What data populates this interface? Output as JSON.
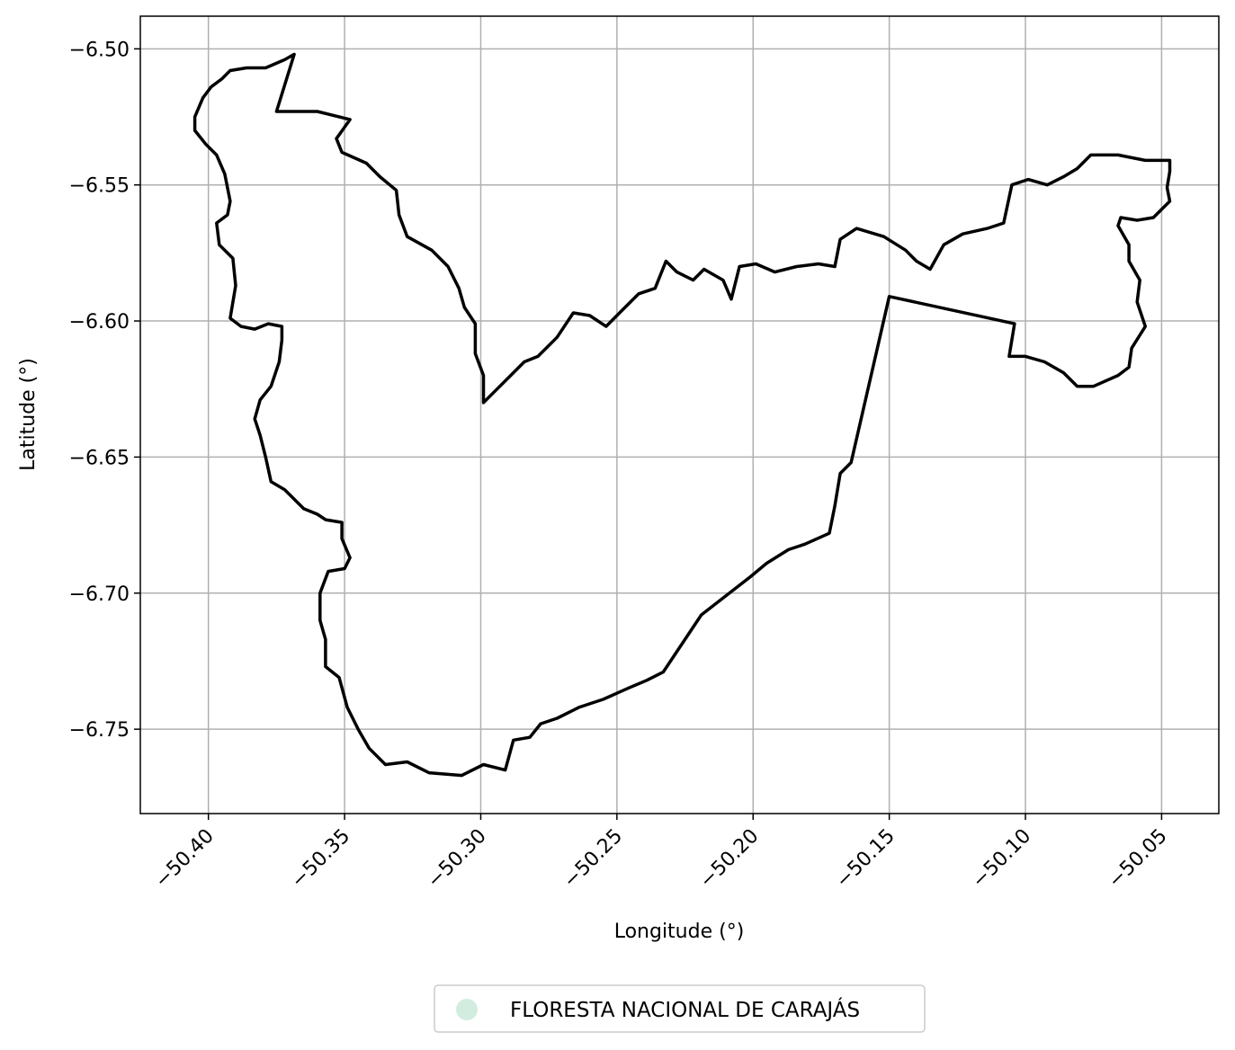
{
  "chart_data": {
    "type": "map",
    "xlabel": "Longitude (°)",
    "ylabel": "Latitude (°)",
    "xlim": [
      -50.425,
      -50.029
    ],
    "ylim": [
      -6.781,
      -6.488
    ],
    "grid": true,
    "x_ticks": [
      -50.4,
      -50.35,
      -50.3,
      -50.25,
      -50.2,
      -50.15,
      -50.1,
      -50.05
    ],
    "x_tick_labels": [
      "−50.40",
      "−50.35",
      "−50.30",
      "−50.25",
      "−50.20",
      "−50.15",
      "−50.10",
      "−50.05"
    ],
    "y_ticks": [
      -6.5,
      -6.55,
      -6.6,
      -6.65,
      -6.7,
      -6.75
    ],
    "y_tick_labels": [
      "−6.50",
      "−6.55",
      "−6.60",
      "−6.65",
      "−6.70",
      "−6.75"
    ],
    "legend": {
      "placement": "bottom-center",
      "entries": [
        {
          "label": "FLORESTA NACIONAL DE CARAJÁS",
          "color": "#d3ece0"
        }
      ]
    },
    "boundary_color": "#000000",
    "boundary": [
      [
        -50.3685,
        -6.502
      ],
      [
        -50.375,
        -6.523
      ],
      [
        -50.36,
        -6.523
      ],
      [
        -50.348,
        -6.526
      ],
      [
        -50.353,
        -6.533
      ],
      [
        -50.351,
        -6.538
      ],
      [
        -50.342,
        -6.542
      ],
      [
        -50.337,
        -6.547
      ],
      [
        -50.331,
        -6.552
      ],
      [
        -50.33,
        -6.561
      ],
      [
        -50.327,
        -6.569
      ],
      [
        -50.318,
        -6.574
      ],
      [
        -50.312,
        -6.58
      ],
      [
        -50.308,
        -6.588
      ],
      [
        -50.306,
        -6.595
      ],
      [
        -50.302,
        -6.601
      ],
      [
        -50.302,
        -6.612
      ],
      [
        -50.299,
        -6.62
      ],
      [
        -50.299,
        -6.63
      ],
      [
        -50.295,
        -6.626
      ],
      [
        -50.289,
        -6.62
      ],
      [
        -50.284,
        -6.615
      ],
      [
        -50.279,
        -6.613
      ],
      [
        -50.272,
        -6.606
      ],
      [
        -50.266,
        -6.597
      ],
      [
        -50.26,
        -6.598
      ],
      [
        -50.254,
        -6.602
      ],
      [
        -50.248,
        -6.596
      ],
      [
        -50.242,
        -6.59
      ],
      [
        -50.236,
        -6.588
      ],
      [
        -50.232,
        -6.578
      ],
      [
        -50.228,
        -6.582
      ],
      [
        -50.222,
        -6.585
      ],
      [
        -50.218,
        -6.581
      ],
      [
        -50.211,
        -6.585
      ],
      [
        -50.208,
        -6.592
      ],
      [
        -50.205,
        -6.58
      ],
      [
        -50.199,
        -6.579
      ],
      [
        -50.192,
        -6.582
      ],
      [
        -50.184,
        -6.58
      ],
      [
        -50.176,
        -6.579
      ],
      [
        -50.17,
        -6.58
      ],
      [
        -50.168,
        -6.57
      ],
      [
        -50.162,
        -6.566
      ],
      [
        -50.152,
        -6.569
      ],
      [
        -50.144,
        -6.574
      ],
      [
        -50.14,
        -6.578
      ],
      [
        -50.135,
        -6.581
      ],
      [
        -50.13,
        -6.572
      ],
      [
        -50.123,
        -6.568
      ],
      [
        -50.114,
        -6.566
      ],
      [
        -50.108,
        -6.564
      ],
      [
        -50.105,
        -6.55
      ],
      [
        -50.099,
        -6.548
      ],
      [
        -50.092,
        -6.55
      ],
      [
        -50.086,
        -6.547
      ],
      [
        -50.081,
        -6.544
      ],
      [
        -50.076,
        -6.539
      ],
      [
        -50.066,
        -6.539
      ],
      [
        -50.056,
        -6.541
      ],
      [
        -50.047,
        -6.541
      ],
      [
        -50.047,
        -6.545
      ],
      [
        -50.048,
        -6.551
      ],
      [
        -50.047,
        -6.556
      ],
      [
        -50.053,
        -6.562
      ],
      [
        -50.059,
        -6.563
      ],
      [
        -50.065,
        -6.562
      ],
      [
        -50.066,
        -6.565
      ],
      [
        -50.062,
        -6.572
      ],
      [
        -50.062,
        -6.578
      ],
      [
        -50.058,
        -6.585
      ],
      [
        -50.059,
        -6.593
      ],
      [
        -50.056,
        -6.602
      ],
      [
        -50.061,
        -6.61
      ],
      [
        -50.062,
        -6.617
      ],
      [
        -50.066,
        -6.62
      ],
      [
        -50.075,
        -6.624
      ],
      [
        -50.081,
        -6.624
      ],
      [
        -50.086,
        -6.619
      ],
      [
        -50.093,
        -6.615
      ],
      [
        -50.1,
        -6.613
      ],
      [
        -50.106,
        -6.613
      ],
      [
        -50.104,
        -6.601
      ],
      [
        -50.15,
        -6.591
      ],
      [
        -50.164,
        -6.652
      ],
      [
        -50.168,
        -6.656
      ],
      [
        -50.17,
        -6.668
      ],
      [
        -50.172,
        -6.678
      ],
      [
        -50.181,
        -6.682
      ],
      [
        -50.187,
        -6.684
      ],
      [
        -50.195,
        -6.689
      ],
      [
        -50.201,
        -6.694
      ],
      [
        -50.219,
        -6.708
      ],
      [
        -50.233,
        -6.729
      ],
      [
        -50.239,
        -6.732
      ],
      [
        -50.246,
        -6.735
      ],
      [
        -50.255,
        -6.739
      ],
      [
        -50.264,
        -6.742
      ],
      [
        -50.272,
        -6.746
      ],
      [
        -50.278,
        -6.748
      ],
      [
        -50.282,
        -6.753
      ],
      [
        -50.288,
        -6.754
      ],
      [
        -50.291,
        -6.765
      ],
      [
        -50.299,
        -6.763
      ],
      [
        -50.307,
        -6.767
      ],
      [
        -50.319,
        -6.766
      ],
      [
        -50.327,
        -6.762
      ],
      [
        -50.335,
        -6.763
      ],
      [
        -50.341,
        -6.757
      ],
      [
        -50.345,
        -6.75
      ],
      [
        -50.349,
        -6.742
      ],
      [
        -50.352,
        -6.731
      ],
      [
        -50.357,
        -6.727
      ],
      [
        -50.357,
        -6.717
      ],
      [
        -50.359,
        -6.71
      ],
      [
        -50.359,
        -6.7
      ],
      [
        -50.356,
        -6.692
      ],
      [
        -50.35,
        -6.691
      ],
      [
        -50.348,
        -6.687
      ],
      [
        -50.351,
        -6.68
      ],
      [
        -50.351,
        -6.674
      ],
      [
        -50.357,
        -6.673
      ],
      [
        -50.36,
        -6.671
      ],
      [
        -50.365,
        -6.669
      ],
      [
        -50.372,
        -6.662
      ],
      [
        -50.377,
        -6.659
      ],
      [
        -50.379,
        -6.65
      ],
      [
        -50.381,
        -6.642
      ],
      [
        -50.383,
        -6.636
      ],
      [
        -50.381,
        -6.629
      ],
      [
        -50.377,
        -6.624
      ],
      [
        -50.374,
        -6.615
      ],
      [
        -50.373,
        -6.607
      ],
      [
        -50.373,
        -6.602
      ],
      [
        -50.378,
        -6.601
      ],
      [
        -50.383,
        -6.603
      ],
      [
        -50.388,
        -6.602
      ],
      [
        -50.392,
        -6.599
      ],
      [
        -50.39,
        -6.587
      ],
      [
        -50.391,
        -6.577
      ],
      [
        -50.396,
        -6.572
      ],
      [
        -50.397,
        -6.564
      ],
      [
        -50.393,
        -6.561
      ],
      [
        -50.392,
        -6.556
      ],
      [
        -50.394,
        -6.546
      ],
      [
        -50.397,
        -6.539
      ],
      [
        -50.401,
        -6.535
      ],
      [
        -50.405,
        -6.53
      ],
      [
        -50.405,
        -6.525
      ],
      [
        -50.402,
        -6.518
      ],
      [
        -50.399,
        -6.514
      ],
      [
        -50.395,
        -6.511
      ],
      [
        -50.392,
        -6.508
      ],
      [
        -50.386,
        -6.507
      ],
      [
        -50.379,
        -6.507
      ],
      [
        -50.372,
        -6.504
      ]
    ]
  }
}
